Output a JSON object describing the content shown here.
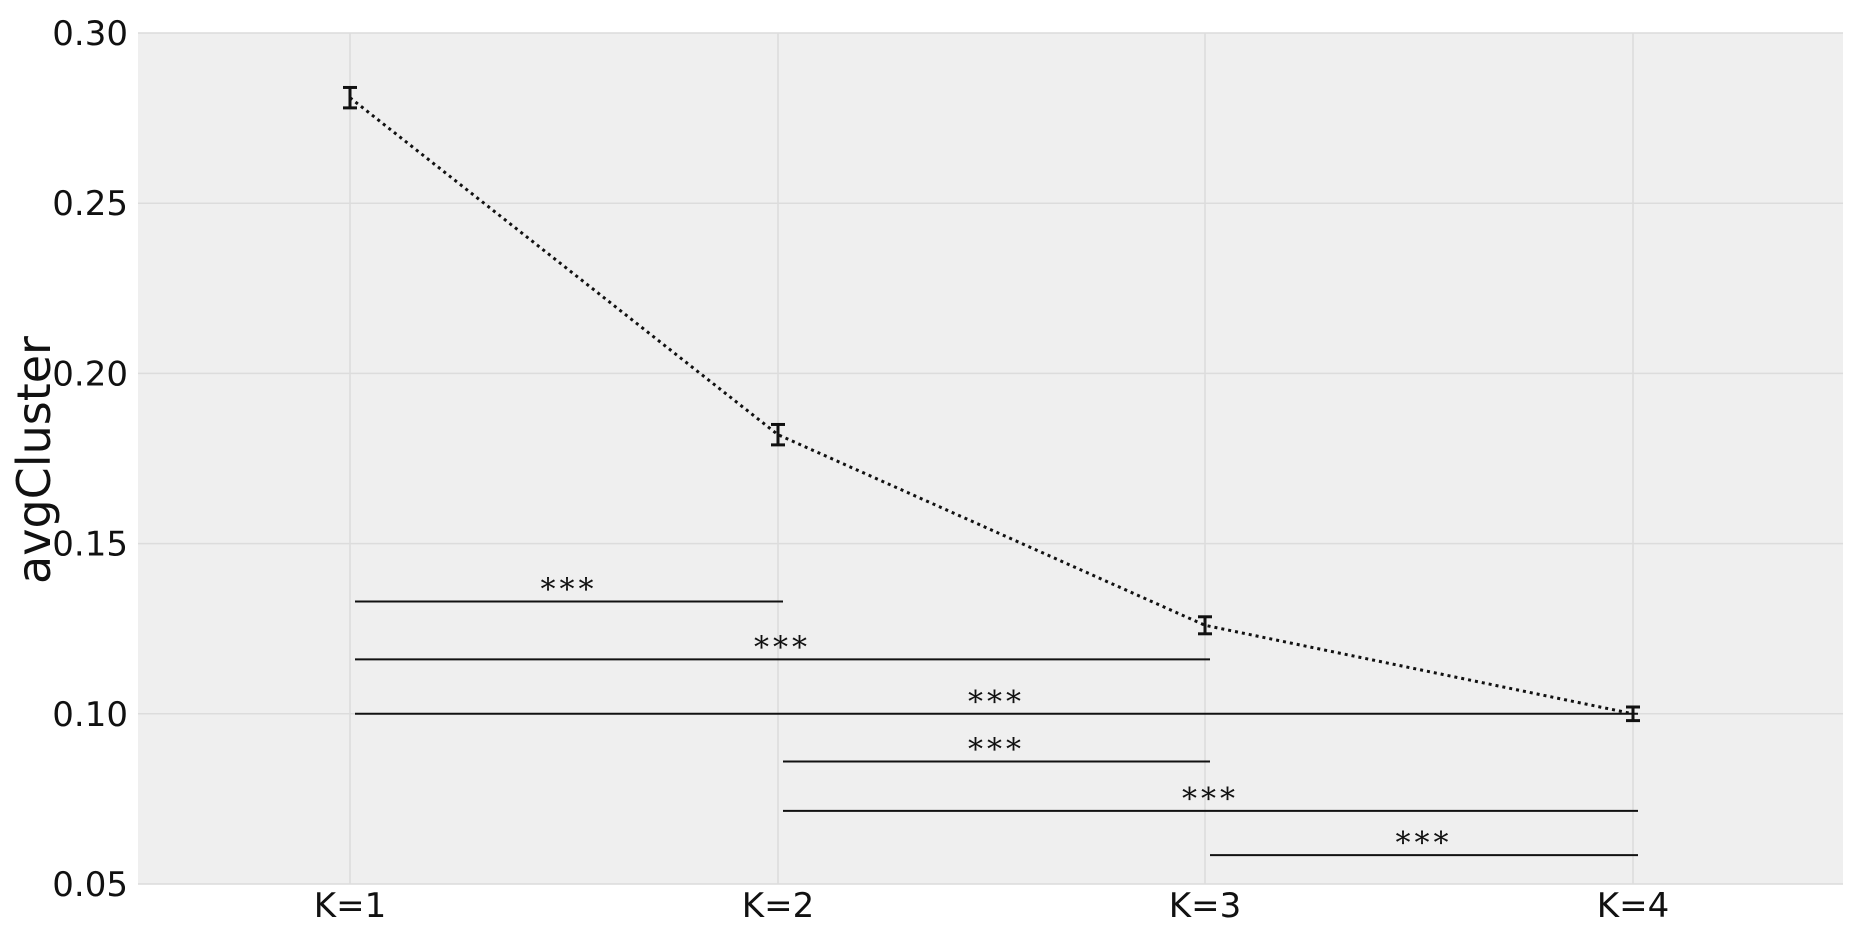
{
  "chart_data": {
    "type": "line",
    "title": "",
    "xlabel": "",
    "ylabel": "avgCluster",
    "categories": [
      "K=1",
      "K=2",
      "K=3",
      "K=4"
    ],
    "series": [
      {
        "values": [
          0.281,
          0.182,
          0.126,
          0.1
        ],
        "error": [
          0.003,
          0.003,
          0.0025,
          0.002
        ],
        "line_style": "dotted",
        "color": "#111111"
      }
    ],
    "ylim": [
      0.05,
      0.3
    ],
    "yticks": [
      "0.05",
      "0.10",
      "0.15",
      "0.20",
      "0.25",
      "0.30"
    ],
    "grid": true,
    "background": "#efefef",
    "grid_color": "#dcdcdc",
    "significance": [
      {
        "from": 0,
        "to": 1,
        "level": 0.133,
        "label": "***"
      },
      {
        "from": 0,
        "to": 2,
        "level": 0.116,
        "label": "***"
      },
      {
        "from": 0,
        "to": 3,
        "level": 0.1,
        "label": "***"
      },
      {
        "from": 1,
        "to": 2,
        "level": 0.086,
        "label": "***"
      },
      {
        "from": 1,
        "to": 3,
        "level": 0.0715,
        "label": "***"
      },
      {
        "from": 2,
        "to": 3,
        "level": 0.0585,
        "label": "***"
      }
    ]
  }
}
